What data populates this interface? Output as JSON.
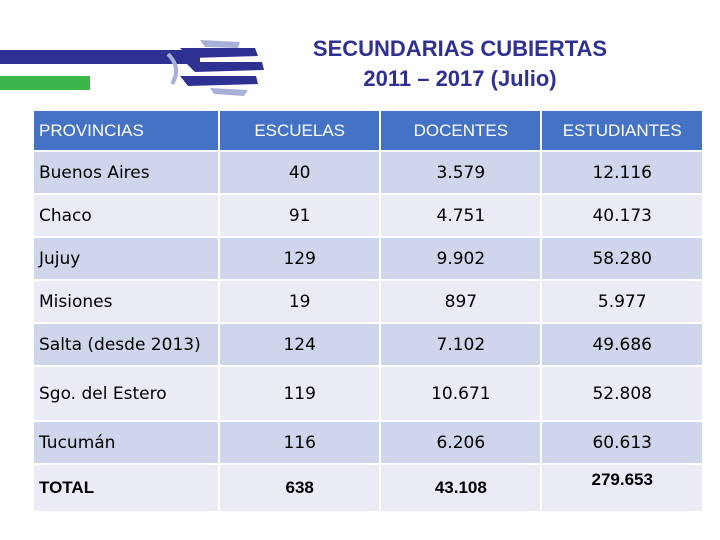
{
  "slide": {
    "title_line1": "SECUNDARIAS CUBIERTAS",
    "title_line2": "2011 – 2017 (Julio)",
    "colors": {
      "header": "#4472c4",
      "title": "#2e3092",
      "row_dark": "#cfd5ea",
      "row_light": "#e9ebf5",
      "accent_green": "#3cb54a"
    }
  },
  "table": {
    "headers": {
      "provincias": "PROVINCIAS",
      "escuelas": "ESCUELAS",
      "docentes": "DOCENTES",
      "estudiantes": "ESTUDIANTES"
    },
    "rows": [
      {
        "provincia": "Buenos Aires",
        "escuelas": "40",
        "docentes": "3.579",
        "estudiantes": "12.116"
      },
      {
        "provincia": "Chaco",
        "escuelas": "91",
        "docentes": "4.751",
        "estudiantes": "40.173"
      },
      {
        "provincia": "Jujuy",
        "escuelas": "129",
        "docentes": "9.902",
        "estudiantes": "58.280"
      },
      {
        "provincia": "Misiones",
        "escuelas": "19",
        "docentes": "897",
        "estudiantes": "5.977"
      },
      {
        "provincia": "Salta (desde 2013)",
        "escuelas": "124",
        "docentes": "7.102",
        "estudiantes": "49.686"
      },
      {
        "provincia": "Sgo. del Estero",
        "escuelas": "119",
        "docentes": "10.671",
        "estudiantes": "52.808"
      },
      {
        "provincia": "Tucumán",
        "escuelas": "116",
        "docentes": "6.206",
        "estudiantes": "60.613"
      }
    ],
    "total": {
      "label": "TOTAL",
      "escuelas": "638",
      "docentes": "43.108",
      "estudiantes": "279.653"
    }
  }
}
